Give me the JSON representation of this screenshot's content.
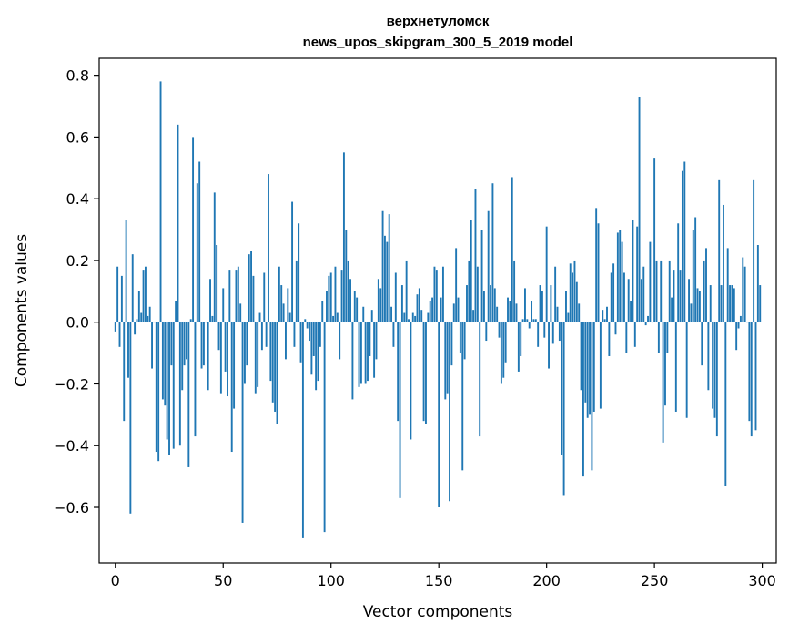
{
  "chart_data": {
    "type": "bar",
    "title": "верхнетуломск",
    "subtitle": "news_upos_skipgram_300_5_2019 model",
    "xlabel": "Vector components",
    "ylabel": "Components values",
    "xlim": [
      -7.5,
      306.5
    ],
    "ylim": [
      -0.78,
      0.855
    ],
    "xticks": [
      0,
      50,
      100,
      150,
      200,
      250,
      300
    ],
    "xtick_labels": [
      "0",
      "50",
      "100",
      "150",
      "200",
      "250",
      "300"
    ],
    "yticks": [
      -0.6,
      -0.4,
      -0.2,
      0.0,
      0.2,
      0.4,
      0.6,
      0.8
    ],
    "ytick_labels": [
      "−0.6",
      "−0.4",
      "−0.2",
      "0.0",
      "0.2",
      "0.4",
      "0.6",
      "0.8"
    ],
    "bar_color": "#1f77b4",
    "grid": false,
    "x": "0..299",
    "values": [
      -0.03,
      0.18,
      -0.08,
      0.15,
      -0.32,
      0.33,
      -0.18,
      -0.62,
      0.22,
      -0.04,
      0.01,
      0.1,
      0.03,
      0.17,
      0.18,
      0.02,
      0.05,
      -0.15,
      0.0,
      -0.42,
      -0.45,
      0.78,
      -0.25,
      -0.27,
      -0.38,
      -0.43,
      -0.14,
      -0.41,
      0.07,
      0.64,
      -0.4,
      -0.22,
      -0.14,
      -0.12,
      -0.47,
      0.01,
      0.6,
      -0.37,
      0.45,
      0.52,
      -0.15,
      -0.14,
      0.0,
      -0.22,
      0.14,
      0.02,
      0.42,
      0.25,
      -0.09,
      -0.23,
      0.11,
      -0.16,
      -0.24,
      0.17,
      -0.42,
      -0.28,
      0.17,
      0.18,
      0.06,
      -0.65,
      -0.2,
      -0.14,
      0.22,
      0.23,
      0.15,
      -0.23,
      -0.21,
      0.03,
      -0.09,
      0.16,
      -0.08,
      0.48,
      -0.19,
      -0.26,
      -0.29,
      -0.33,
      0.18,
      0.12,
      0.06,
      -0.12,
      0.11,
      0.03,
      0.39,
      -0.08,
      0.2,
      0.32,
      -0.13,
      -0.7,
      0.01,
      -0.02,
      -0.06,
      -0.17,
      -0.11,
      -0.22,
      -0.19,
      -0.08,
      0.07,
      -0.68,
      0.1,
      0.15,
      0.16,
      0.02,
      0.18,
      0.03,
      -0.12,
      0.17,
      0.55,
      0.3,
      0.2,
      0.14,
      -0.25,
      0.1,
      0.08,
      -0.21,
      -0.2,
      0.05,
      -0.2,
      -0.19,
      -0.11,
      0.04,
      -0.18,
      -0.12,
      0.14,
      0.11,
      0.36,
      0.28,
      0.26,
      0.35,
      0.05,
      -0.08,
      0.16,
      -0.32,
      -0.57,
      0.12,
      0.03,
      0.2,
      0.01,
      -0.38,
      0.03,
      0.02,
      0.09,
      0.11,
      0.04,
      -0.32,
      -0.33,
      0.03,
      0.07,
      0.08,
      0.18,
      0.17,
      -0.6,
      0.08,
      0.18,
      -0.25,
      -0.23,
      -0.58,
      -0.14,
      0.06,
      0.24,
      0.08,
      -0.1,
      -0.48,
      -0.12,
      0.12,
      0.2,
      0.33,
      0.04,
      0.43,
      0.18,
      -0.37,
      0.3,
      0.1,
      -0.06,
      0.36,
      0.12,
      0.45,
      0.11,
      0.05,
      -0.05,
      -0.2,
      -0.18,
      -0.13,
      0.08,
      0.07,
      0.47,
      0.2,
      0.06,
      -0.16,
      -0.11,
      0.01,
      0.11,
      0.01,
      -0.02,
      0.07,
      0.01,
      0.01,
      -0.08,
      0.12,
      0.1,
      -0.05,
      0.31,
      -0.15,
      0.12,
      -0.07,
      0.18,
      0.05,
      -0.06,
      -0.43,
      -0.56,
      0.1,
      0.03,
      0.19,
      0.16,
      0.2,
      0.13,
      0.06,
      -0.22,
      -0.5,
      -0.26,
      -0.31,
      -0.3,
      -0.48,
      -0.29,
      0.37,
      0.32,
      -0.28,
      0.04,
      0.01,
      0.05,
      -0.11,
      0.16,
      0.19,
      -0.04,
      0.29,
      0.3,
      0.26,
      0.16,
      -0.1,
      0.14,
      0.07,
      0.33,
      -0.08,
      0.31,
      0.73,
      0.14,
      0.18,
      -0.01,
      0.02,
      0.26,
      0.0,
      0.53,
      0.2,
      -0.1,
      0.2,
      -0.39,
      -0.27,
      -0.1,
      0.2,
      0.08,
      0.17,
      -0.29,
      0.32,
      0.17,
      0.49,
      0.52,
      -0.31,
      0.14,
      0.06,
      0.3,
      0.34,
      0.11,
      0.1,
      -0.14,
      0.2,
      0.24,
      -0.22,
      0.12,
      -0.28,
      -0.31,
      -0.37,
      0.46,
      0.12,
      0.38,
      -0.53,
      0.24,
      0.12,
      0.12,
      0.11,
      -0.09,
      -0.02,
      0.02,
      0.21,
      0.18,
      0.0,
      -0.32,
      -0.37,
      0.46,
      -0.35,
      0.25,
      0.12
    ]
  }
}
